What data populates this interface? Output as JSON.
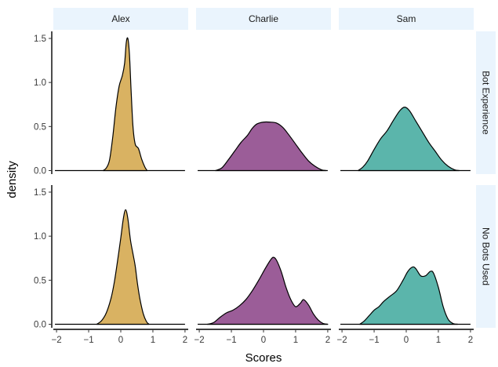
{
  "chart_data": {
    "type": "area",
    "xlabel": "Scores",
    "ylabel": "density",
    "xlim": [
      -2.1,
      2.1
    ],
    "ylim": [
      -0.04,
      1.58
    ],
    "x_ticks": [
      -2,
      -1,
      0,
      1,
      2
    ],
    "x_tick_labels": [
      "−2",
      "−1",
      "0",
      "1",
      "2"
    ],
    "y_ticks": [
      0.0,
      0.5,
      1.0,
      1.5
    ],
    "y_tick_labels": [
      "0.0",
      "0.5",
      "1.0",
      "1.5"
    ],
    "grid": false,
    "legend": "none",
    "columns": [
      "Alex",
      "Charlie",
      "Sam"
    ],
    "rows": [
      "Bot Experience",
      "No Bots Used"
    ],
    "strip_fill": "#eaf4fd",
    "panels": [
      {
        "column": "Alex",
        "row": "Bot Experience",
        "color": "#d9b262",
        "x": [
          -0.55,
          -0.45,
          -0.35,
          -0.25,
          -0.15,
          -0.05,
          0.05,
          0.12,
          0.17,
          0.22,
          0.27,
          0.32,
          0.38,
          0.45,
          0.55,
          0.65,
          0.75,
          0.82
        ],
        "density": [
          0.0,
          0.03,
          0.12,
          0.38,
          0.72,
          0.96,
          1.08,
          1.22,
          1.45,
          1.5,
          1.32,
          0.92,
          0.5,
          0.3,
          0.25,
          0.13,
          0.04,
          0.0
        ]
      },
      {
        "column": "Charlie",
        "row": "Bot Experience",
        "color": "#9b5d98",
        "x": [
          -1.5,
          -1.3,
          -1.1,
          -0.9,
          -0.7,
          -0.5,
          -0.35,
          -0.2,
          0.0,
          0.2,
          0.4,
          0.6,
          0.8,
          1.0,
          1.2,
          1.4,
          1.6,
          1.8,
          1.95
        ],
        "density": [
          0.0,
          0.03,
          0.12,
          0.22,
          0.32,
          0.4,
          0.48,
          0.53,
          0.55,
          0.55,
          0.54,
          0.49,
          0.4,
          0.3,
          0.2,
          0.11,
          0.05,
          0.01,
          0.0
        ]
      },
      {
        "column": "Sam",
        "row": "Bot Experience",
        "color": "#5bb5ab",
        "x": [
          -1.5,
          -1.35,
          -1.2,
          -1.0,
          -0.8,
          -0.6,
          -0.4,
          -0.2,
          -0.05,
          0.1,
          0.3,
          0.5,
          0.7,
          0.9,
          1.1,
          1.3,
          1.5,
          1.65
        ],
        "density": [
          0.0,
          0.04,
          0.11,
          0.24,
          0.36,
          0.45,
          0.57,
          0.68,
          0.72,
          0.68,
          0.56,
          0.44,
          0.32,
          0.22,
          0.12,
          0.05,
          0.01,
          0.0
        ]
      },
      {
        "column": "Alex",
        "row": "No Bots Used",
        "color": "#d9b262",
        "x": [
          -0.75,
          -0.6,
          -0.45,
          -0.3,
          -0.2,
          -0.1,
          0.0,
          0.08,
          0.15,
          0.22,
          0.3,
          0.38,
          0.45,
          0.52,
          0.6,
          0.7,
          0.8,
          0.88
        ],
        "density": [
          0.0,
          0.04,
          0.13,
          0.3,
          0.48,
          0.72,
          0.98,
          1.2,
          1.3,
          1.2,
          0.96,
          0.8,
          0.66,
          0.46,
          0.28,
          0.12,
          0.03,
          0.0
        ]
      },
      {
        "column": "Charlie",
        "row": "No Bots Used",
        "color": "#9b5d98",
        "x": [
          -1.75,
          -1.55,
          -1.35,
          -1.15,
          -0.95,
          -0.75,
          -0.55,
          -0.35,
          -0.15,
          0.05,
          0.2,
          0.3,
          0.4,
          0.55,
          0.7,
          0.85,
          1.0,
          1.15,
          1.25,
          1.4,
          1.55,
          1.7,
          1.85,
          2.0
        ],
        "density": [
          0.0,
          0.02,
          0.08,
          0.13,
          0.16,
          0.21,
          0.28,
          0.38,
          0.5,
          0.63,
          0.72,
          0.76,
          0.73,
          0.6,
          0.42,
          0.28,
          0.2,
          0.24,
          0.28,
          0.22,
          0.12,
          0.05,
          0.01,
          0.0
        ]
      },
      {
        "column": "Sam",
        "row": "No Bots Used",
        "color": "#5bb5ab",
        "x": [
          -1.45,
          -1.3,
          -1.15,
          -1.0,
          -0.85,
          -0.7,
          -0.5,
          -0.3,
          -0.1,
          0.05,
          0.2,
          0.3,
          0.45,
          0.6,
          0.75,
          0.85,
          1.0,
          1.15,
          1.3,
          1.45,
          1.6
        ],
        "density": [
          0.0,
          0.04,
          0.1,
          0.16,
          0.2,
          0.26,
          0.32,
          0.38,
          0.5,
          0.6,
          0.65,
          0.63,
          0.55,
          0.55,
          0.6,
          0.58,
          0.42,
          0.2,
          0.06,
          0.01,
          0.0
        ]
      }
    ]
  }
}
